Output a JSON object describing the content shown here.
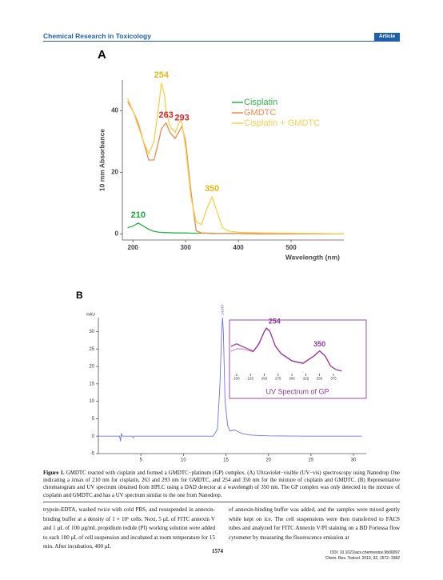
{
  "header": {
    "journal": "Chemical Research in Toxicology",
    "section": "Article"
  },
  "panel_labels": [
    "A",
    "B"
  ],
  "chart_data": [
    {
      "type": "line",
      "x_label": "Wavelength (nm)",
      "y_label": "10 mm Absorbance",
      "x": [
        190,
        200,
        210,
        220,
        230,
        240,
        250,
        254,
        260,
        263,
        270,
        280,
        290,
        293,
        300,
        310,
        320,
        330,
        340,
        350,
        360,
        370,
        380,
        400,
        450,
        500,
        550,
        600
      ],
      "series": [
        {
          "name": "Cisplatin",
          "color": "#2db34a",
          "values": [
            2,
            2.5,
            3.5,
            2.5,
            1.5,
            0.8,
            0.5,
            0.5,
            0.4,
            0.4,
            0.4,
            0.3,
            0.3,
            0.3,
            0.3,
            0.2,
            0.2,
            0.2,
            0.2,
            0.1,
            0.1,
            0.1,
            0.1,
            0.1,
            0,
            0,
            0,
            0
          ]
        },
        {
          "name": "GMDTC",
          "color": "#f08a4b",
          "values": [
            43,
            40,
            36,
            30,
            24,
            24,
            31,
            34,
            35.5,
            36,
            33,
            31,
            34,
            35,
            30,
            14,
            1,
            0.3,
            0.2,
            0.2,
            0.1,
            0.1,
            0.1,
            0.1,
            0,
            0,
            0,
            0
          ]
        },
        {
          "name": "Cisplatin + GMDTC",
          "color": "#f5d04a",
          "values": [
            44,
            40,
            35,
            30,
            26,
            30,
            43,
            49,
            45,
            40,
            35,
            33,
            37,
            36,
            28,
            12,
            4,
            3,
            8,
            12,
            7,
            2,
            1,
            0.5,
            0.3,
            0.2,
            0.1,
            0
          ]
        }
      ],
      "annotations": [
        {
          "text": "210",
          "series": 0,
          "color": "#19a83a"
        },
        {
          "text": "263",
          "series": 1,
          "color": "#d9262b"
        },
        {
          "text": "293",
          "series": 1,
          "color": "#d9262b"
        },
        {
          "text": "254",
          "series": 2,
          "color": "#e8b81a"
        },
        {
          "text": "350",
          "series": 2,
          "color": "#e8b81a"
        }
      ],
      "xlim": [
        180,
        600
      ],
      "ylim": [
        -2,
        50
      ],
      "xticks": [
        200,
        300,
        400,
        500
      ],
      "yticks": [
        0,
        20,
        40
      ],
      "legend": "top-right"
    },
    {
      "type": "line",
      "y_unit": "mAU",
      "x": [
        0,
        2.5,
        2.6,
        2.7,
        2.8,
        4,
        4.1,
        4.2,
        13.5,
        14,
        14.3,
        14.5,
        14.607,
        14.7,
        14.9,
        15.2,
        15.5,
        16,
        16.5,
        17,
        18,
        20,
        25,
        31
      ],
      "series": [
        {
          "color": "#6f6ff0",
          "values": [
            0,
            0,
            -1.5,
            0.8,
            0,
            0,
            -0.4,
            0,
            0,
            2,
            15,
            30,
            34,
            30,
            10,
            3,
            1.5,
            1.8,
            1.2,
            0.7,
            0.3,
            0.1,
            0,
            0
          ]
        }
      ],
      "annotations": [
        {
          "text": "14.607",
          "series": 0,
          "color": "#5555cc"
        }
      ],
      "xlim": [
        0,
        31.5
      ],
      "ylim": [
        -5,
        34
      ],
      "xticks": [
        5,
        10,
        15,
        20,
        25,
        30
      ],
      "yticks": [
        -5,
        0,
        5,
        10,
        15,
        20,
        25,
        30
      ]
    },
    {
      "type": "line",
      "title": "UV Spectrum of GP",
      "x": [
        190,
        200,
        210,
        220,
        230,
        240,
        250,
        254,
        260,
        270,
        280,
        300,
        320,
        340,
        350,
        360,
        370,
        380,
        390
      ],
      "series": [
        {
          "color": "#e58ab8",
          "values": [
            0.45,
            0.5,
            0.5,
            0.47,
            0.44,
            0.58,
            0.84,
            0.9,
            0.85,
            0.55,
            0.4,
            0.25,
            0.2,
            0.35,
            0.45,
            0.35,
            0.15,
            0.08,
            0.05
          ]
        },
        {
          "color": "#8e3a9a",
          "values": [
            0.55,
            0.6,
            0.55,
            0.5,
            0.45,
            0.6,
            0.85,
            0.92,
            0.86,
            0.56,
            0.41,
            0.26,
            0.21,
            0.36,
            0.46,
            0.36,
            0.15,
            0.08,
            0.05
          ]
        }
      ],
      "annotations": [
        {
          "text": "254",
          "series": 1,
          "color": "#8e3a9a"
        },
        {
          "text": "350",
          "series": 1,
          "color": "#8e3a9a"
        }
      ],
      "xlim": [
        190,
        430
      ],
      "ylim": [
        0,
        1
      ],
      "xticks": [
        200,
        225,
        250,
        275,
        300,
        325,
        350,
        375
      ]
    }
  ],
  "caption": {
    "label": "Figure 1.",
    "text": "GMDTC reacted with cisplatin and formed a GMDTC−platinum (GP) complex. (A) Ultraviolet−visible (UV−vis) spectroscopy using Nanodrop One indicating a λmax of 210 nm for cisplatin, 263 and 293 nm for GMDTC, and 254 and 350 nm for the mixture of cisplatin and GMDTC. (B) Representative chromatogram and UV spectrum obtained from HPLC using a DAD detector at a wavelength of 350 nm. The GP complex was only detected in the mixture of cisplatin and GMDTC and has a UV spectrum similar to the one from Nanodrop."
  },
  "body": {
    "left": "trypsin-EDTA, washed twice with cold PBS, and resuspended in annexin-binding buffer at a density of 1 × 10⁶ cells. Next, 5 μL of FITC annexin V and 1 μL of 100 μg/mL propidium iodide (PI) working solution were added to each 100 μL of cell suspension and incubated at room temperature for 15 min. After incubation, 400 μL",
    "right": "of annexin-binding buffer was added, and the samples were mixed gently while kept on ice. The cell suspensions were then transferred to FACS tubes and analyzed for FITC Annexin V/PI staining on a BD Fortessa flow cytometer by measuring the fluorescence emission at"
  },
  "footer": {
    "page": "1574",
    "doi": "DOI: 10.1021/acs.chemrestox.9b00097",
    "citation": "Chem. Res. Toxicol. 2019, 32, 1572−1582"
  }
}
